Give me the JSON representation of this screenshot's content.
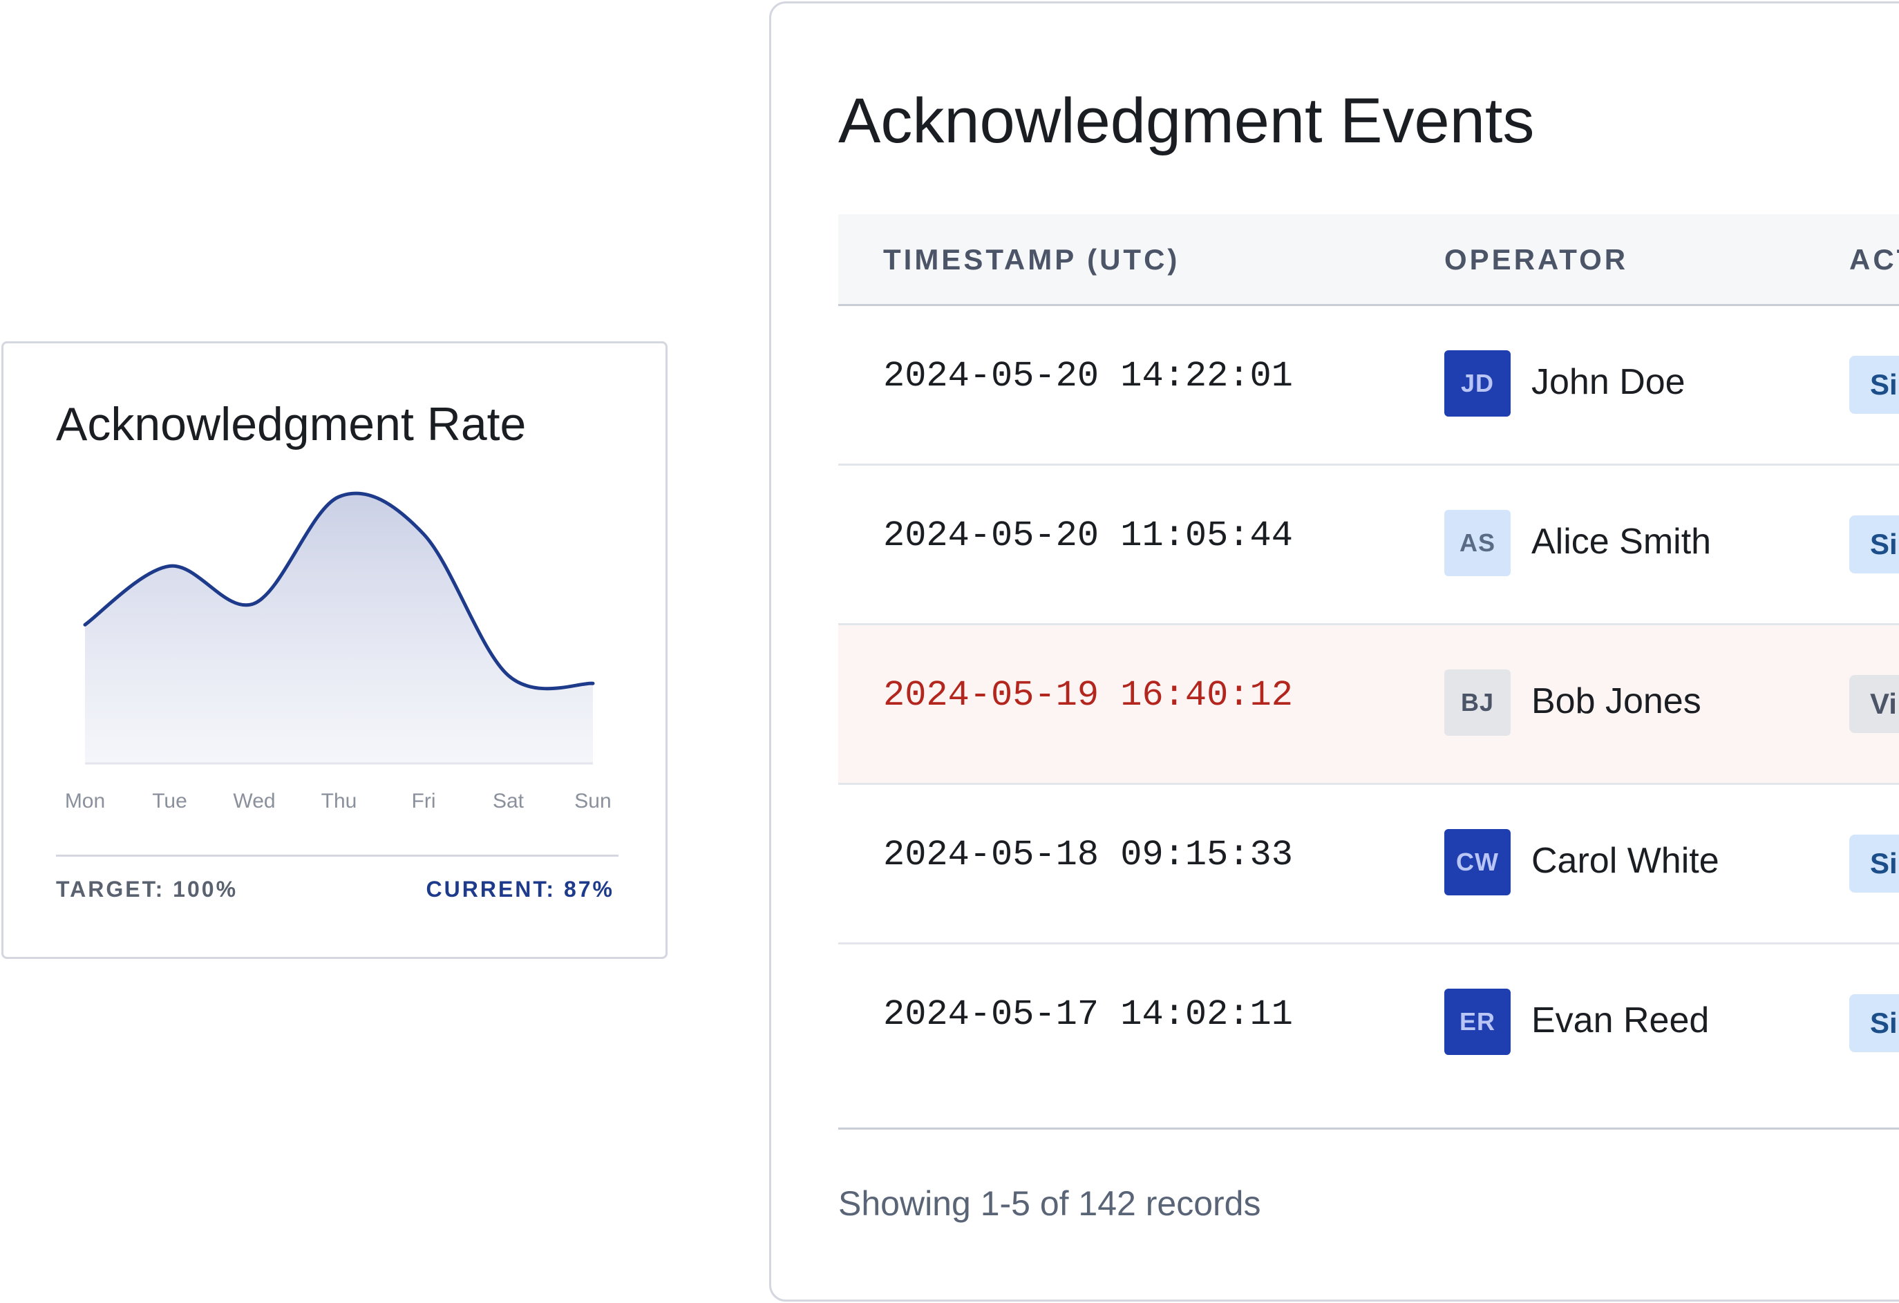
{
  "rate_card": {
    "title": "Acknowledgment Rate",
    "target_label": "TARGET: 100%",
    "current_label": "CURRENT: 87%",
    "chart_data": {
      "type": "area",
      "categories": [
        "Mon",
        "Tue",
        "Wed",
        "Thu",
        "Fri",
        "Sat",
        "Sun"
      ],
      "values": [
        52,
        74,
        60,
        100,
        86,
        33,
        30
      ],
      "title": "",
      "xlabel": "",
      "ylabel": "",
      "ylim": [
        0,
        100
      ],
      "grid": false,
      "line_color": "#1e3a8a",
      "fill_color": "#c7cde4"
    }
  },
  "events": {
    "title": "Acknowledgment Events",
    "columns": {
      "timestamp": "TIMESTAMP (UTC)",
      "operator": "OPERATOR",
      "action": "ACT"
    },
    "rows": [
      {
        "timestamp": "2024-05-20 14:22:01",
        "initials": "JD",
        "operator": "John Doe",
        "action": "Si",
        "avatar_style": "dark",
        "action_style": "blue",
        "alert": false
      },
      {
        "timestamp": "2024-05-20 11:05:44",
        "initials": "AS",
        "operator": "Alice Smith",
        "action": "Si",
        "avatar_style": "light",
        "action_style": "blue",
        "alert": false
      },
      {
        "timestamp": "2024-05-19 16:40:12",
        "initials": "BJ",
        "operator": "Bob Jones",
        "action": "Vi",
        "avatar_style": "gray",
        "action_style": "gray",
        "alert": true
      },
      {
        "timestamp": "2024-05-18 09:15:33",
        "initials": "CW",
        "operator": "Carol White",
        "action": "Si",
        "avatar_style": "dark",
        "action_style": "blue",
        "alert": false
      },
      {
        "timestamp": "2024-05-17 14:02:11",
        "initials": "ER",
        "operator": "Evan Reed",
        "action": "Si",
        "avatar_style": "dark",
        "action_style": "blue",
        "alert": false
      }
    ],
    "records_text": "Showing 1-5 of 142 records"
  },
  "colors": {
    "accent": "#1e3a8a",
    "alert_text": "#b3261e",
    "alert_row_bg": "#fdf5f4",
    "avatar_dark": "#1f3fb0",
    "avatar_light": "#d3e4fb",
    "badge_blue": "#d3e6fb"
  }
}
